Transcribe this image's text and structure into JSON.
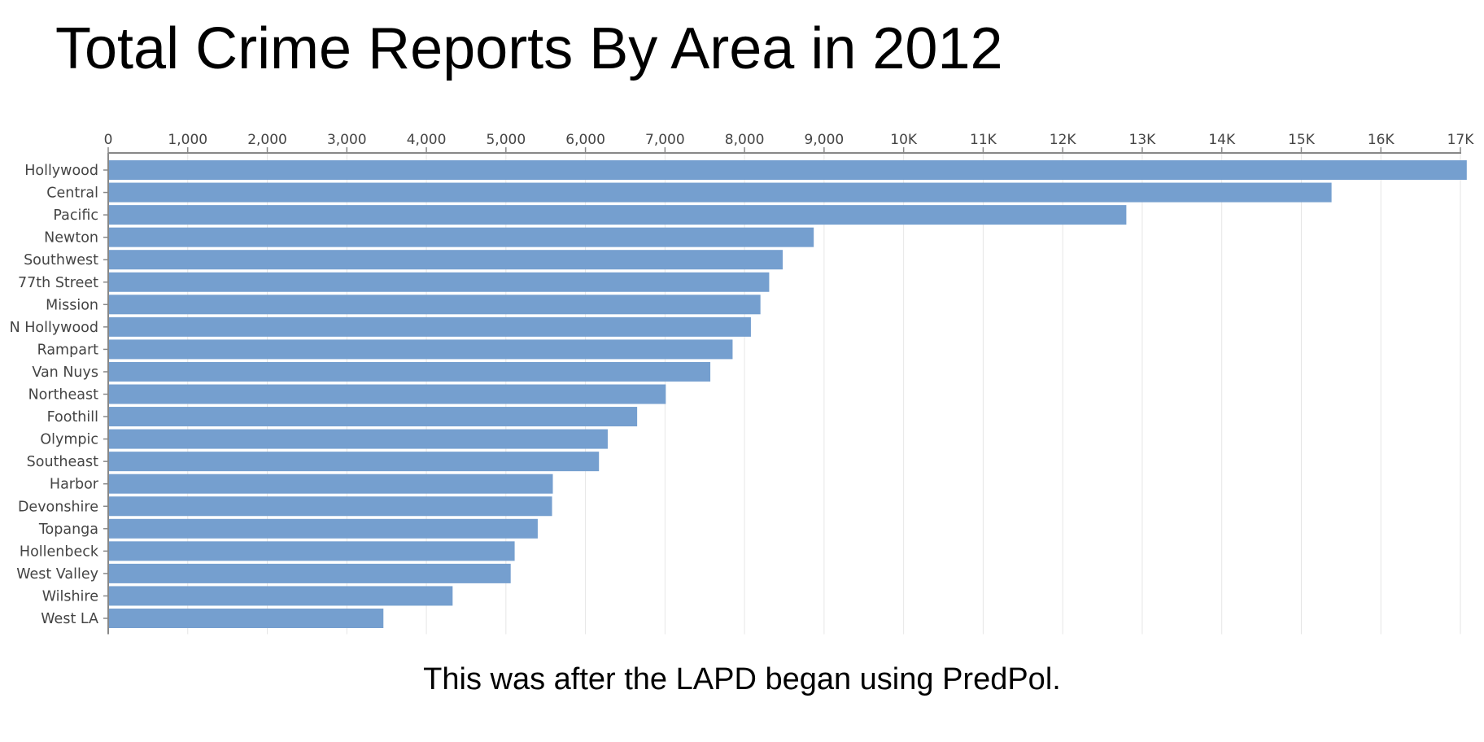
{
  "slide": {
    "title": "Total Crime Reports By Area in 2012",
    "caption": "This was after the LAPD began using PredPol."
  },
  "colors": {
    "bar": "#759fcf",
    "axis": "#888888",
    "grid": "#e6e6e6",
    "tick_text": "#444444"
  },
  "chart_data": {
    "type": "bar",
    "orientation": "horizontal",
    "title": "",
    "xlabel": "",
    "ylabel": "",
    "xlim": [
      0,
      17000
    ],
    "x_axis_position": "top",
    "grid": true,
    "x_ticks": [
      {
        "value": 0,
        "label": "0"
      },
      {
        "value": 1000,
        "label": "1,000"
      },
      {
        "value": 2000,
        "label": "2,000"
      },
      {
        "value": 3000,
        "label": "3,000"
      },
      {
        "value": 4000,
        "label": "4,000"
      },
      {
        "value": 5000,
        "label": "5,000"
      },
      {
        "value": 6000,
        "label": "6,000"
      },
      {
        "value": 7000,
        "label": "7,000"
      },
      {
        "value": 8000,
        "label": "8,000"
      },
      {
        "value": 9000,
        "label": "9,000"
      },
      {
        "value": 10000,
        "label": "10K"
      },
      {
        "value": 11000,
        "label": "11K"
      },
      {
        "value": 12000,
        "label": "12K"
      },
      {
        "value": 13000,
        "label": "13K"
      },
      {
        "value": 14000,
        "label": "14K"
      },
      {
        "value": 15000,
        "label": "15K"
      },
      {
        "value": 16000,
        "label": "16K"
      },
      {
        "value": 17000,
        "label": "17K"
      }
    ],
    "categories": [
      "Hollywood",
      "Central",
      "Pacific",
      "Newton",
      "Southwest",
      "77th Street",
      "Mission",
      "N Hollywood",
      "Rampart",
      "Van Nuys",
      "Northeast",
      "Foothill",
      "Olympic",
      "Southeast",
      "Harbor",
      "Devonshire",
      "Topanga",
      "Hollenbeck",
      "West Valley",
      "Wilshire",
      "West LA"
    ],
    "values": [
      17080,
      15380,
      12800,
      8870,
      8480,
      8310,
      8200,
      8080,
      7850,
      7570,
      7010,
      6650,
      6280,
      6170,
      5590,
      5580,
      5400,
      5110,
      5060,
      4330,
      3460
    ]
  }
}
